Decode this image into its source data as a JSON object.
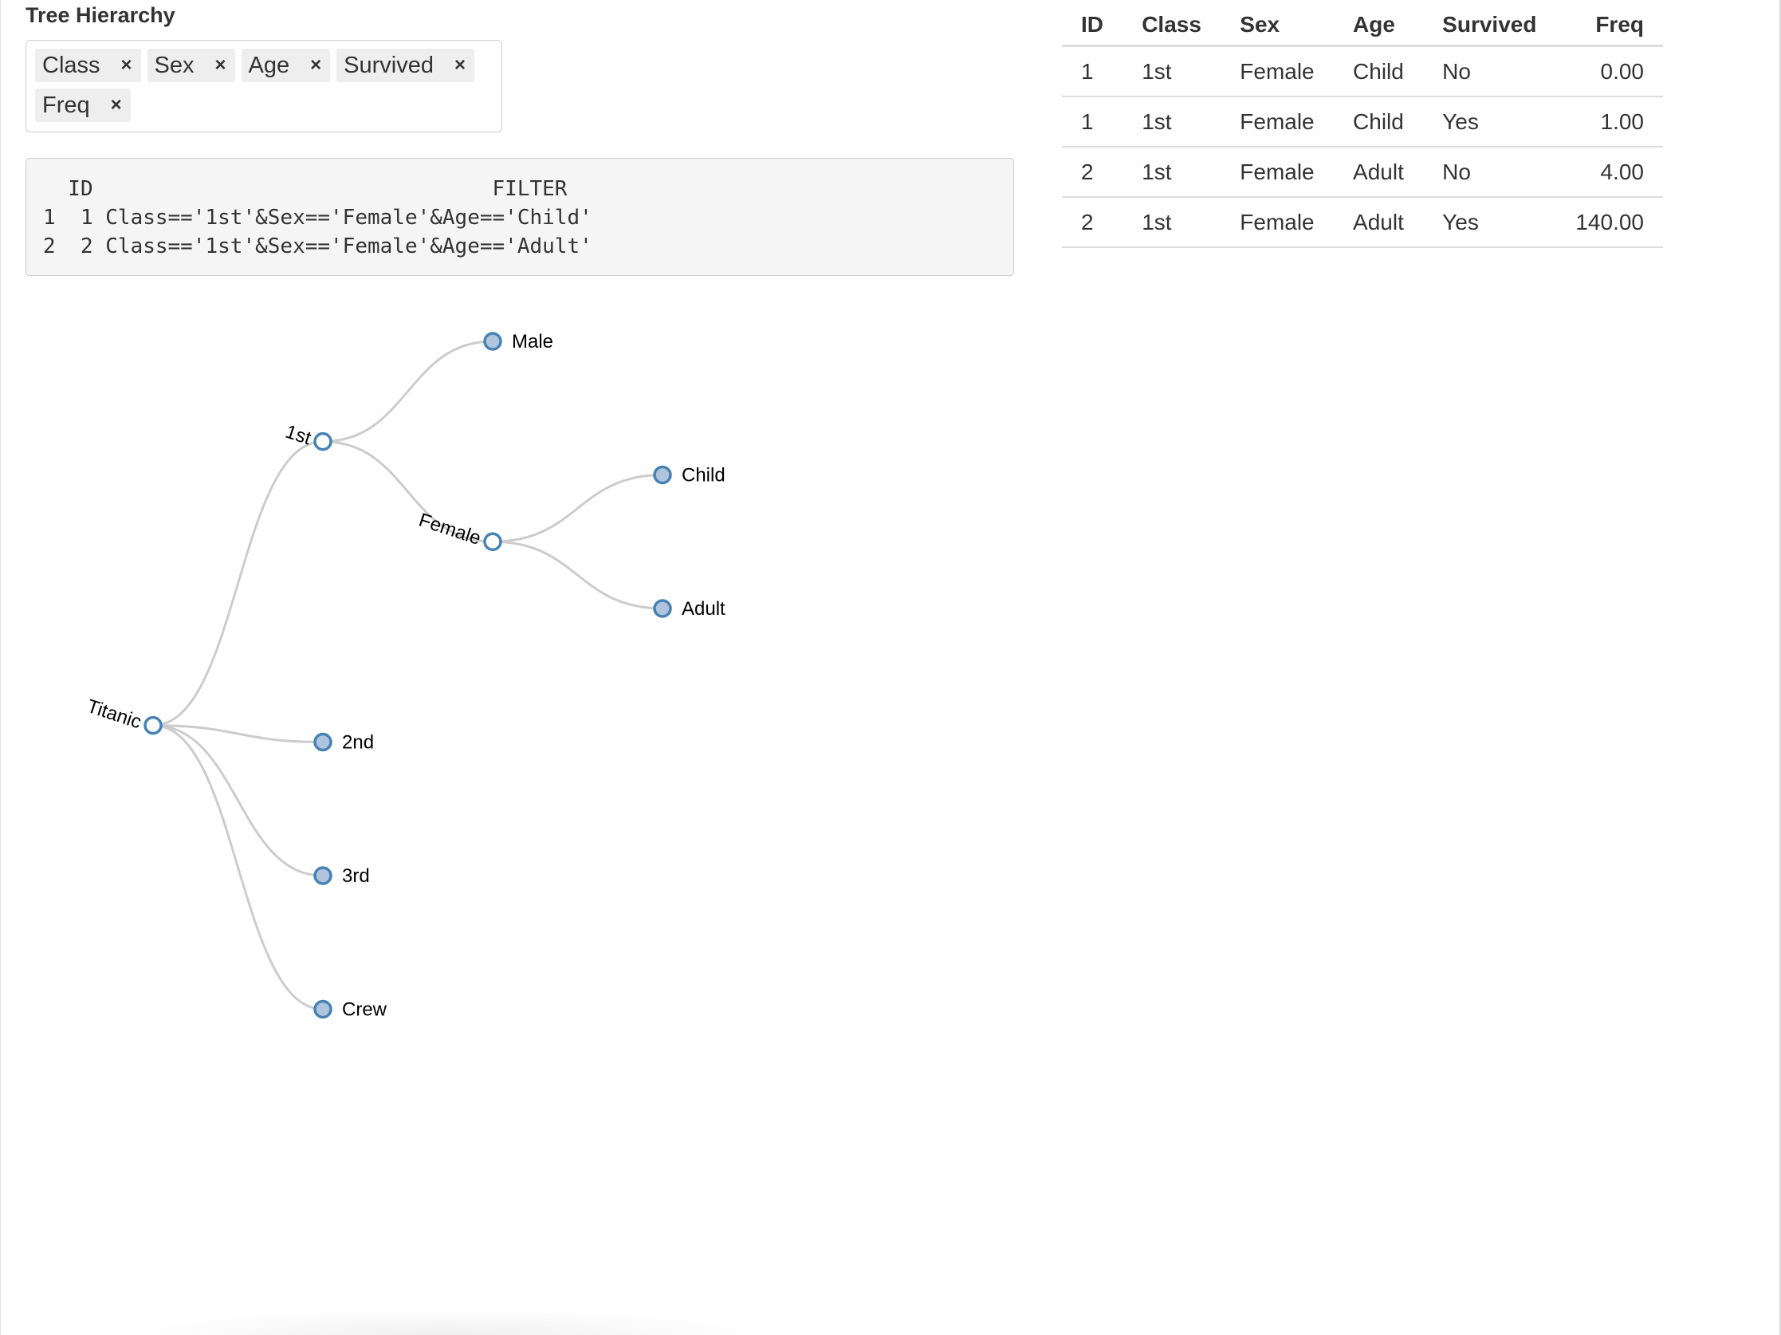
{
  "panel": {
    "title": "Tree Hierarchy",
    "remove_glyph": "×",
    "selected_tags": [
      "Class",
      "Sex",
      "Age",
      "Survived",
      "Freq"
    ]
  },
  "filter_output": {
    "header": "  ID                                FILTER",
    "rows": [
      "1  1 Class=='1st'&Sex=='Female'&Age=='Child'",
      "2  2 Class=='1st'&Sex=='Female'&Age=='Adult'"
    ]
  },
  "data_table": {
    "columns": [
      "ID",
      "Class",
      "Sex",
      "Age",
      "Survived",
      "Freq"
    ],
    "rows": [
      [
        "1",
        "1st",
        "Female",
        "Child",
        "No",
        "0.00"
      ],
      [
        "1",
        "1st",
        "Female",
        "Child",
        "Yes",
        "1.00"
      ],
      [
        "2",
        "1st",
        "Female",
        "Adult",
        "No",
        "4.00"
      ],
      [
        "2",
        "1st",
        "Female",
        "Adult",
        "Yes",
        "140.00"
      ]
    ]
  },
  "tree": {
    "colors": {
      "link": "#cccccc",
      "stroke": "#4682b4",
      "collapsed_fill": "#b0c4de",
      "expanded_fill": "#ffffff"
    },
    "root": {
      "name": "Titanic",
      "expanded": true,
      "children": [
        {
          "name": "1st",
          "expanded": true,
          "children": [
            {
              "name": "Male",
              "expanded": false
            },
            {
              "name": "Female",
              "expanded": true,
              "children": [
                {
                  "name": "Child",
                  "expanded": false
                },
                {
                  "name": "Adult",
                  "expanded": false
                }
              ]
            }
          ]
        },
        {
          "name": "2nd",
          "expanded": false
        },
        {
          "name": "3rd",
          "expanded": false
        },
        {
          "name": "Crew",
          "expanded": false
        }
      ]
    }
  }
}
